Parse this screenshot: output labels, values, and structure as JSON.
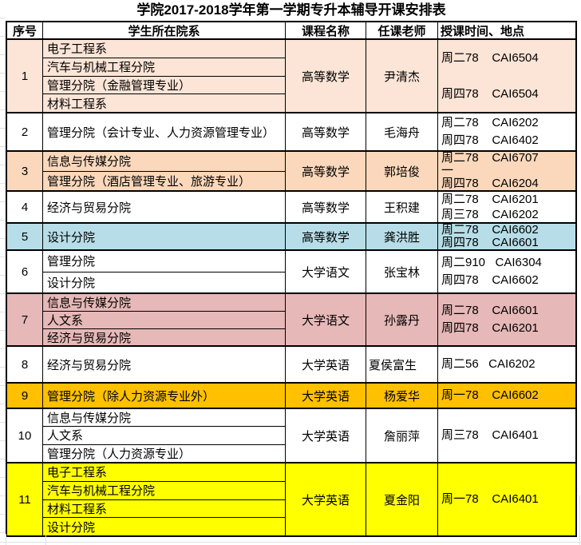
{
  "title": "学院2017-2018学年第一学期专升本辅导开课安排表",
  "columns": [
    "序号",
    "学生所在院系",
    "课程名称",
    "任课老师",
    "授课时间、地点"
  ],
  "rows": [
    {
      "no": "1",
      "departments": [
        "电子工程系",
        "汽车与机械工程分院",
        "管理分院（金融管理专业）",
        "材料工程系"
      ],
      "course": "高等数学",
      "teacher": "尹清杰",
      "schedule": [
        "周二78    CAI6504",
        "周四78    CAI6504"
      ],
      "color": "#FCE4D6"
    },
    {
      "no": "2",
      "departments": [
        "管理分院（会计专业、人力资源管理专业）"
      ],
      "course": "高等数学",
      "teacher": "毛海舟",
      "schedule": [
        "周二78    CAI6202",
        "周四78    CAI6402"
      ],
      "color": "#FFFFFF"
    },
    {
      "no": "3",
      "departments": [
        "信息与传媒分院",
        "管理分院（酒店管理专业、旅游专业）"
      ],
      "course": "高等数学",
      "teacher": "郭培俊",
      "schedule": [
        "周二78    CAI6707",
        "一",
        "周四78    CAI6204"
      ],
      "color": "#FBD8BB"
    },
    {
      "no": "4",
      "departments": [
        "经济与贸易分院"
      ],
      "course": "高等数学",
      "teacher": "王积建",
      "schedule": [
        "周二78    CAI6201",
        "周三78    CAI6202"
      ],
      "color": "#FFFFFF"
    },
    {
      "no": "5",
      "departments": [
        "设计分院"
      ],
      "course": "高等数学",
      "teacher": "龚洪胜",
      "schedule": [
        "周二78    CAI6602",
        "周四78    CAI6601"
      ],
      "color": "#B7DEE8"
    },
    {
      "no": "6",
      "departments": [
        "管理分院",
        "设计分院"
      ],
      "course": "大学语文",
      "teacher": "张宝林",
      "schedule": [
        "周二910   CAI6304",
        "周四78    CAI6602"
      ],
      "color": "#FFFFFF"
    },
    {
      "no": "7",
      "departments": [
        "信息与传媒分院",
        "人文系",
        "经济与贸易分院"
      ],
      "course": "大学语文",
      "teacher": "孙露丹",
      "schedule": [
        "周二78    CAI6601",
        "周四78    CAI6201"
      ],
      "color": "#E6B8B7"
    },
    {
      "no": "8",
      "departments": [
        "经济与贸易分院"
      ],
      "course": "大学英语",
      "teacher": "夏侯富生",
      "schedule": [
        "周二56   CAI6202"
      ],
      "color": "#FFFFFF"
    },
    {
      "no": "9",
      "departments": [
        "管理分院（除人力资源专业外）"
      ],
      "course": "大学英语",
      "teacher": "杨爱华",
      "schedule": [
        "周一78    CAI6602"
      ],
      "color": "#FFC000"
    },
    {
      "no": "10",
      "departments": [
        "信息与传媒分院",
        "人文系",
        "管理分院（人力资源专业）"
      ],
      "course": "大学英语",
      "teacher": "詹丽萍",
      "schedule": [
        "周三78    CAI6401"
      ],
      "color": "#FFFFFF"
    },
    {
      "no": "11",
      "departments": [
        "电子工程系",
        "汽车与机械工程分院",
        "材料工程系",
        "设计分院"
      ],
      "course": "大学英语",
      "teacher": "夏金阳",
      "schedule": [
        "周一78    CAI6401"
      ],
      "color": "#FFFF00"
    }
  ]
}
